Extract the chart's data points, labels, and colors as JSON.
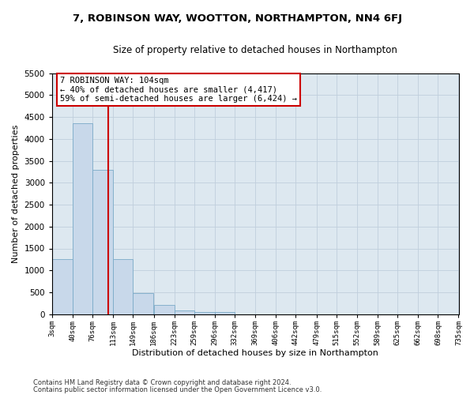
{
  "title": "7, ROBINSON WAY, WOOTTON, NORTHAMPTON, NN4 6FJ",
  "subtitle": "Size of property relative to detached houses in Northampton",
  "xlabel": "Distribution of detached houses by size in Northampton",
  "ylabel": "Number of detached properties",
  "annotation_line1": "7 ROBINSON WAY: 104sqm",
  "annotation_line2": "← 40% of detached houses are smaller (4,417)",
  "annotation_line3": "59% of semi-detached houses are larger (6,424) →",
  "footer1": "Contains HM Land Registry data © Crown copyright and database right 2024.",
  "footer2": "Contains public sector information licensed under the Open Government Licence v3.0.",
  "property_size": 104,
  "bar_color": "#c8d8ea",
  "bar_edge_color": "#7aaac8",
  "vline_color": "#cc0000",
  "annotation_edge_color": "#cc0000",
  "bg_axes_color": "#dde8f0",
  "background_color": "#ffffff",
  "grid_color": "#c0cedc",
  "ylim_max": 5500,
  "bin_edges": [
    3,
    40,
    76,
    113,
    149,
    186,
    223,
    259,
    296,
    332,
    369,
    406,
    442,
    479,
    515,
    552,
    589,
    625,
    662,
    698,
    735
  ],
  "bar_heights": [
    1260,
    4350,
    3300,
    1260,
    490,
    215,
    90,
    55,
    45,
    0,
    0,
    0,
    0,
    0,
    0,
    0,
    0,
    0,
    0,
    0
  ],
  "tick_labels": [
    "3sqm",
    "40sqm",
    "76sqm",
    "113sqm",
    "149sqm",
    "186sqm",
    "223sqm",
    "259sqm",
    "296sqm",
    "332sqm",
    "369sqm",
    "406sqm",
    "442sqm",
    "479sqm",
    "515sqm",
    "552sqm",
    "589sqm",
    "625sqm",
    "662sqm",
    "698sqm",
    "735sqm"
  ],
  "yticks": [
    0,
    500,
    1000,
    1500,
    2000,
    2500,
    3000,
    3500,
    4000,
    4500,
    5000,
    5500
  ]
}
